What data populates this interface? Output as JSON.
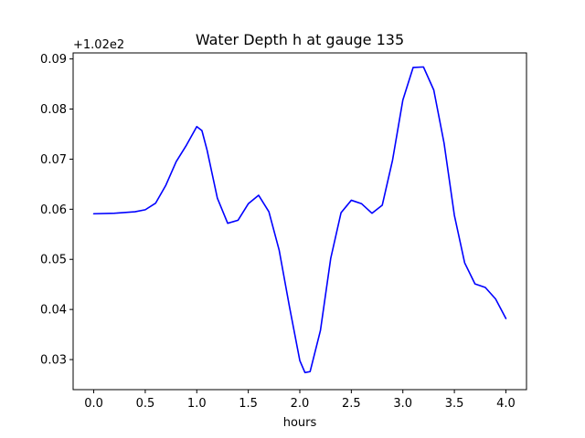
{
  "chart_data": {
    "type": "line",
    "title": "Water Depth h at gauge 135",
    "xlabel": "hours",
    "ylabel": "",
    "y_offset_label": "+1.02e2",
    "y_offset_value": 102,
    "xlim": [
      -0.2,
      4.2
    ],
    "ylim": [
      0.024,
      0.0912
    ],
    "x_ticks": [
      0.0,
      0.5,
      1.0,
      1.5,
      2.0,
      2.5,
      3.0,
      3.5,
      4.0
    ],
    "x_tick_labels": [
      "0.0",
      "0.5",
      "1.0",
      "1.5",
      "2.0",
      "2.5",
      "3.0",
      "3.5",
      "4.0"
    ],
    "y_ticks": [
      0.03,
      0.04,
      0.05,
      0.06,
      0.07,
      0.08,
      0.09
    ],
    "y_tick_labels": [
      "0.03",
      "0.04",
      "0.05",
      "0.06",
      "0.07",
      "0.08",
      "0.09"
    ],
    "grid": false,
    "series": [
      {
        "color": "#0000ff",
        "x": [
          0.0,
          0.2,
          0.4,
          0.5,
          0.6,
          0.7,
          0.8,
          0.9,
          1.0,
          1.05,
          1.1,
          1.2,
          1.3,
          1.4,
          1.5,
          1.6,
          1.7,
          1.8,
          1.9,
          2.0,
          2.05,
          2.1,
          2.2,
          2.3,
          2.4,
          2.5,
          2.6,
          2.7,
          2.8,
          2.9,
          3.0,
          3.1,
          3.2,
          3.3,
          3.4,
          3.5,
          3.6,
          3.7,
          3.8,
          3.9,
          4.0
        ],
        "y": [
          0.0591,
          0.0592,
          0.0595,
          0.0599,
          0.0612,
          0.0648,
          0.0695,
          0.0728,
          0.0765,
          0.0757,
          0.0718,
          0.0622,
          0.0572,
          0.0578,
          0.0611,
          0.0628,
          0.0595,
          0.0518,
          0.0405,
          0.0298,
          0.0274,
          0.0276,
          0.0358,
          0.0502,
          0.0593,
          0.0618,
          0.0611,
          0.0592,
          0.0608,
          0.0698,
          0.0818,
          0.0883,
          0.0884,
          0.0838,
          0.0732,
          0.0588,
          0.0493,
          0.0451,
          0.0444,
          0.0421,
          0.0382
        ]
      }
    ]
  }
}
